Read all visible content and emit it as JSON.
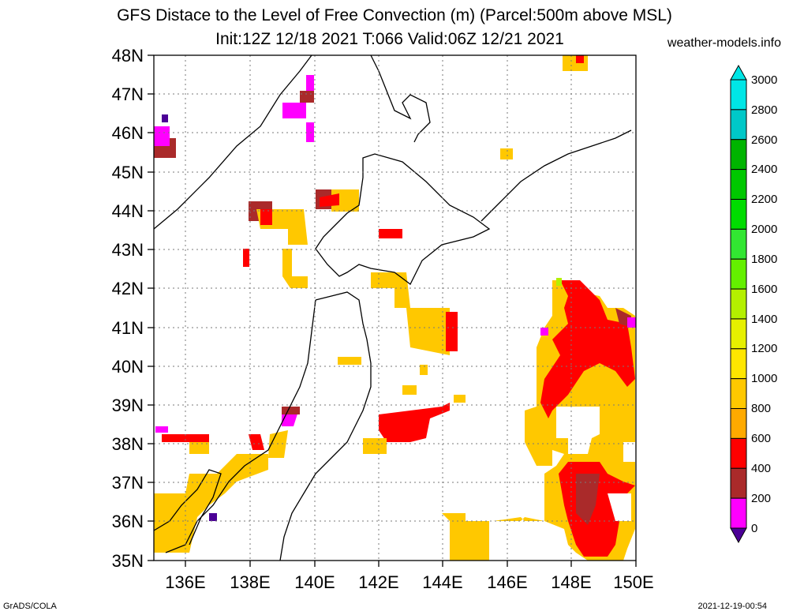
{
  "title": {
    "line1": "GFS Distace to the Level of Free Convection (m) (Parcel:500m above MSL)",
    "line2": "Init:12Z 12/18 2021 T:066 Valid:06Z 12/21 2021"
  },
  "source": "weather-models.info",
  "footer": {
    "left": "GrADS/COLA",
    "right": "2021-12-19-00:54"
  },
  "map": {
    "lat_labels": [
      "48N",
      "47N",
      "46N",
      "45N",
      "44N",
      "43N",
      "42N",
      "41N",
      "40N",
      "39N",
      "38N",
      "37N",
      "36N",
      "35N"
    ],
    "lon_labels": [
      "136E",
      "138E",
      "140E",
      "142E",
      "144E",
      "146E",
      "148E",
      "150E"
    ],
    "lat_range": [
      35,
      48
    ],
    "lon_range": [
      135,
      150
    ],
    "grid": "dotted"
  },
  "colorbar": {
    "labels": [
      "3000",
      "2800",
      "2600",
      "2400",
      "2200",
      "2000",
      "1800",
      "1600",
      "1400",
      "1200",
      "1000",
      "800",
      "600",
      "400",
      "200",
      "0"
    ],
    "colors": [
      "#00e6e6",
      "#00c8c8",
      "#00b400",
      "#00c800",
      "#00dc00",
      "#32e632",
      "#64f000",
      "#b4f000",
      "#e6f000",
      "#ffe600",
      "#ffc800",
      "#ffaa00",
      "#ff0000",
      "#aa2a2a",
      "#ff00ff",
      "#4b0096"
    ]
  }
}
